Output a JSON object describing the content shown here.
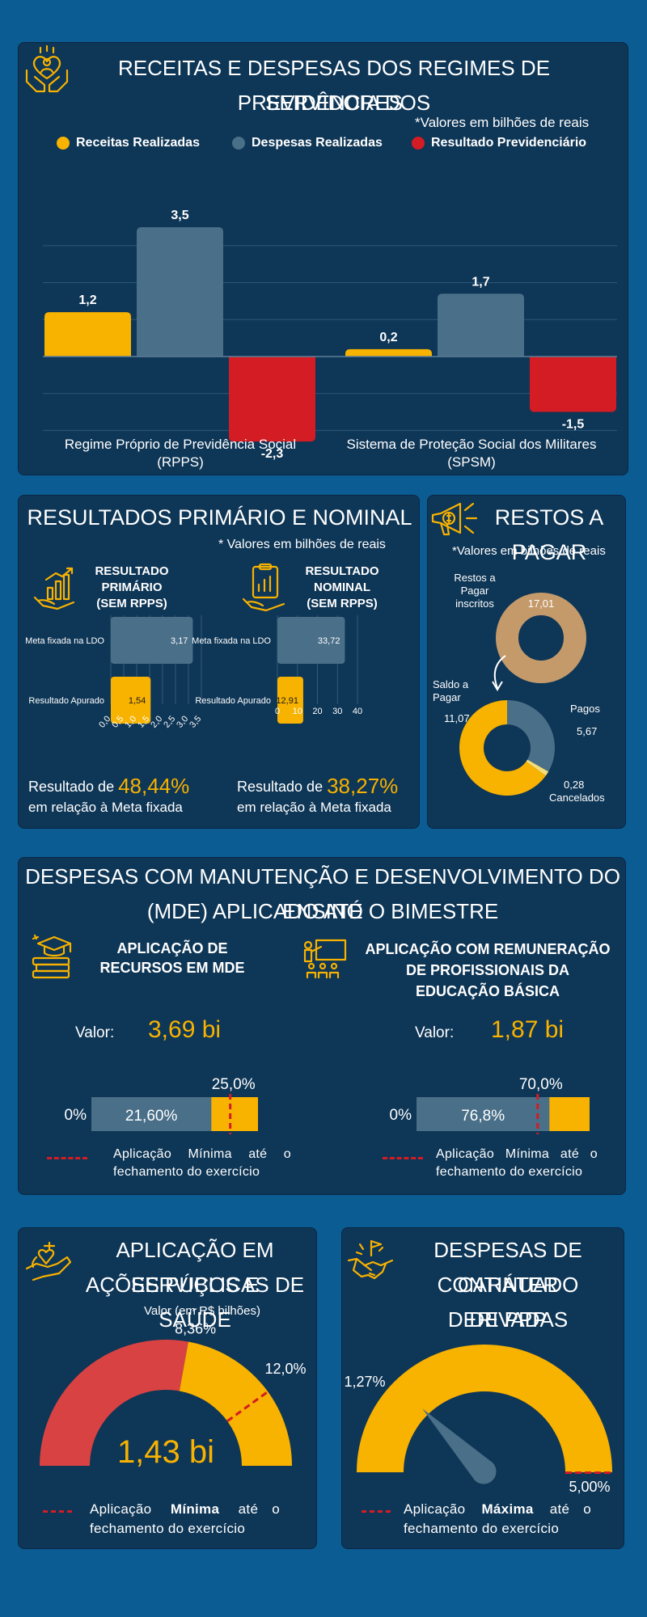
{
  "colors": {
    "bg": "#0b5c93",
    "panel": "#0e3656",
    "yellow": "#f8b200",
    "grey": "#4a6f88",
    "red": "#d31c24",
    "tan": "#c49a6a",
    "darkred": "#d94242"
  },
  "section1": {
    "title_line1": "RECEITAS E DESPESAS DOS REGIMES DE PREVIDÊNCIA DOS",
    "title_line2": "SERVIDORES",
    "note": "*Valores em bilhões de reais",
    "icon": "heart-hands-icon",
    "legend": [
      "Receitas Realizadas",
      "Despesas Realizadas",
      "Resultado Previdenciário"
    ]
  },
  "chart_data": [
    {
      "type": "bar",
      "categories": [
        "Regime Próprio de Previdência Social (RPPS)",
        "Sistema de Proteção Social dos Militares (SPSM)"
      ],
      "category_lines": [
        [
          "Regime Próprio de Previdência Social",
          "(RPPS)"
        ],
        [
          "Sistema de Proteção Social dos Militares",
          "(SPSM)"
        ]
      ],
      "series": [
        {
          "name": "Receitas Realizadas",
          "values": [
            1.2,
            0.2
          ],
          "labels": [
            "1,2",
            "0,2"
          ],
          "color": "#f8b200"
        },
        {
          "name": "Despesas Realizadas",
          "values": [
            3.5,
            1.7
          ],
          "labels": [
            "3,5",
            "1,7"
          ],
          "color": "#4a6f88"
        },
        {
          "name": "Resultado Previdenciário",
          "values": [
            -2.3,
            -1.5
          ],
          "labels": [
            "-2,3",
            "-1,5"
          ],
          "color": "#d31c24"
        }
      ],
      "ylim": [
        -3,
        3.5
      ],
      "grid": true
    },
    {
      "type": "bar",
      "orientation": "horizontal",
      "title": "RESULTADO PRIMÁRIO (SEM RPPS)",
      "categories": [
        "Meta fixada na LDO",
        "Resultado Apurado"
      ],
      "values": [
        3.17,
        1.54
      ],
      "labels": [
        "3,17",
        "1,54"
      ],
      "xticks": [
        "0,0",
        "0,5",
        "1,0",
        "1,5",
        "2,0",
        "2,5",
        "3,0",
        "3,5"
      ],
      "xlim": [
        0,
        3.5
      ]
    },
    {
      "type": "bar",
      "orientation": "horizontal",
      "title": "RESULTADO NOMINAL (SEM RPPS)",
      "categories": [
        "Meta fixada na LDO",
        "Resultado Apurado"
      ],
      "values": [
        33.72,
        12.91
      ],
      "labels": [
        "33,72",
        "12,91"
      ],
      "xticks": [
        "0",
        "10",
        "20",
        "30",
        "40"
      ],
      "xlim": [
        0,
        40
      ]
    },
    {
      "type": "pie",
      "title": "Restos a Pagar inscritos",
      "values": [
        17.01
      ],
      "labels": [
        "17,01"
      ]
    },
    {
      "type": "pie",
      "title": "Saldo a Pagar",
      "categories": [
        "Saldo a Pagar",
        "Pagos",
        "Cancelados"
      ],
      "values": [
        11.07,
        5.67,
        0.28
      ],
      "labels": [
        "11,07",
        "5,67",
        "0,28"
      ]
    },
    {
      "type": "bar",
      "title": "APLICAÇÃO DE RECURSOS EM MDE",
      "value_pct": 21.6,
      "min_pct": 25.0,
      "labels": [
        "0%",
        "21,60%",
        "25,0%"
      ]
    },
    {
      "type": "bar",
      "title": "APLICAÇÃO COM REMUNERAÇÃO DE PROFISSIONAIS DA EDUCAÇÃO BÁSICA",
      "value_pct": 76.8,
      "min_pct": 70.0,
      "labels": [
        "0%",
        "76,8%",
        "70,0%"
      ]
    },
    {
      "type": "pie",
      "title": "APLICAÇÃO EM SERVIÇOS E AÇÕES PÚBLICAS DE SAÚDE",
      "value_pct": 8.36,
      "min_pct": 12.0,
      "labels": [
        "8,36%",
        "12,0%"
      ]
    },
    {
      "type": "pie",
      "title": "DESPESAS DE CARÁTER CONTINUADO DERIVADAS DE PPP",
      "value_pct": 1.27,
      "max_pct": 5.0,
      "labels": [
        "1,27%",
        "5,00%"
      ]
    }
  ],
  "section2": {
    "title": "RESULTADOS PRIMÁRIO E NOMINAL",
    "note": "* Valores em bilhões de reais",
    "primario_title": [
      "RESULTADO",
      "PRIMÁRIO",
      "(SEM RPPS)"
    ],
    "nominal_title": [
      "RESULTADO",
      "NOMINAL",
      "(SEM RPPS)"
    ],
    "result_prefix": "Resultado de",
    "primario_pct": "48,44%",
    "nominal_pct": "38,27%",
    "result_suffix": "em relação à Meta fixada"
  },
  "section3": {
    "title": "RESTOS A PAGAR",
    "note": "*Valores em bilhões de reais",
    "inscritos_label": [
      "Restos a",
      "Pagar",
      "inscritos"
    ],
    "saldo_label": [
      "Saldo a",
      "Pagar"
    ],
    "pagos_label": "Pagos",
    "cancelados_label": "Cancelados"
  },
  "section4": {
    "title_line1": "DESPESAS COM MANUTENÇÃO E DESENVOLVIMENTO DO ENSINO",
    "title_line2": "(MDE) APLICADO ATÉ O BIMESTRE",
    "left_title": [
      "APLICAÇÃO DE",
      "RECURSOS EM MDE"
    ],
    "right_title": [
      "APLICAÇÃO COM REMUNERAÇÃO",
      "DE PROFISSIONAIS DA",
      "EDUCAÇÃO BÁSICA"
    ],
    "value_label": "Valor:",
    "left_value": "3,69 bi",
    "right_value": "1,87 bi",
    "legend": [
      "Aplicação Mínima até o",
      "fechamento do exercício"
    ]
  },
  "section5": {
    "title_line1": "APLICAÇÃO EM SERVIÇOS E",
    "title_line2": "AÇÕES PÚBLICAS DE SAÚDE",
    "subtitle": "Valor (em R$ bilhões)",
    "value": "1,43 bi",
    "legend_pre": "Aplicação",
    "legend_bold": "Mínima",
    "legend_post": "até o",
    "legend_line2": "fechamento do exercício"
  },
  "section6": {
    "title_line1": "DESPESAS DE CARÁTER",
    "title_line2": "CONTINUADO DERIVADAS",
    "title_line3": "DE PPP",
    "legend_pre": "Aplicação",
    "legend_bold": "Máxima",
    "legend_post": "até o",
    "legend_line2": "fechamento do exercício"
  }
}
